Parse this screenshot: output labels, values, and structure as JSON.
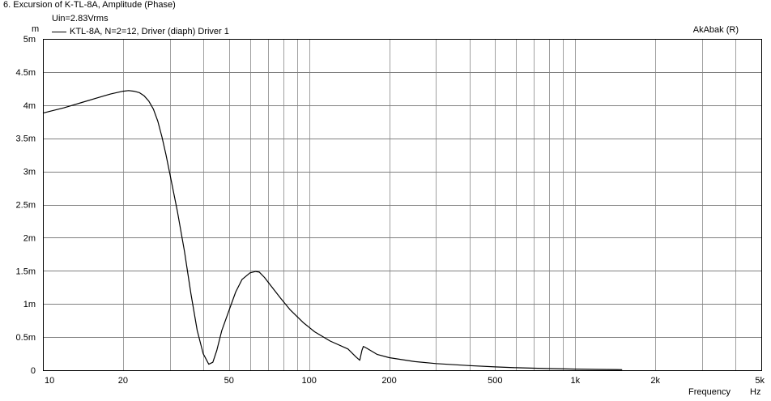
{
  "window_title": "6. Excursion of K-TL-8A, Amplitude (Phase)",
  "subtitle": "Uin=2.83Vrms",
  "watermark": "AkAbak (R)",
  "chart_data": {
    "type": "line",
    "title": "Excursion of K-TL-8A, Amplitude (Phase)",
    "subtitle": "Uin=2.83Vrms",
    "xlabel": "Frequency",
    "xunit": "Hz",
    "yunit": "m",
    "xscale": "log",
    "xlim": [
      10,
      5000
    ],
    "ylim": [
      0,
      0.005
    ],
    "grid": true,
    "legend_position": "top-left",
    "x_ticks": [
      {
        "value": 10,
        "label": "10"
      },
      {
        "value": 20,
        "label": "20"
      },
      {
        "value": 50,
        "label": "50"
      },
      {
        "value": 100,
        "label": "100"
      },
      {
        "value": 200,
        "label": "200"
      },
      {
        "value": 500,
        "label": "500"
      },
      {
        "value": 1000,
        "label": "1k"
      },
      {
        "value": 2000,
        "label": "2k"
      },
      {
        "value": 5000,
        "label": "5k"
      }
    ],
    "y_ticks": [
      {
        "value": 0,
        "label": "0"
      },
      {
        "value": 0.0005,
        "label": "0.5m"
      },
      {
        "value": 0.001,
        "label": "1m"
      },
      {
        "value": 0.0015,
        "label": "1.5m"
      },
      {
        "value": 0.002,
        "label": "2m"
      },
      {
        "value": 0.0025,
        "label": "2.5m"
      },
      {
        "value": 0.003,
        "label": "3m"
      },
      {
        "value": 0.0035,
        "label": "3.5m"
      },
      {
        "value": 0.004,
        "label": "4m"
      },
      {
        "value": 0.0045,
        "label": "4.5m"
      },
      {
        "value": 0.005,
        "label": "5m"
      }
    ],
    "series": [
      {
        "name": "KTL-8A, N=2=12, Driver (diaph) Driver 1",
        "color": "#000000",
        "x": [
          10,
          12,
          14,
          16,
          18,
          20,
          21,
          22,
          23,
          24,
          25,
          26,
          27,
          28,
          29,
          30,
          32,
          34,
          36,
          38,
          40,
          42,
          43.5,
          45,
          47,
          50,
          53,
          56,
          60,
          63,
          65,
          68,
          72,
          78,
          85,
          95,
          105,
          120,
          140,
          150,
          155,
          158,
          160,
          165,
          180,
          200,
          250,
          300,
          400,
          500,
          600,
          700,
          800,
          1000,
          1200,
          1500
        ],
        "y": [
          0.00388,
          0.00396,
          0.00404,
          0.00411,
          0.00417,
          0.00421,
          0.00422,
          0.00421,
          0.00419,
          0.00414,
          0.00406,
          0.00394,
          0.00376,
          0.00352,
          0.00325,
          0.00296,
          0.0024,
          0.0018,
          0.00115,
          0.0006,
          0.00025,
          9e-05,
          0.00012,
          0.0003,
          0.0006,
          0.0009,
          0.00118,
          0.00137,
          0.00147,
          0.00149,
          0.00148,
          0.0014,
          0.00127,
          0.00109,
          0.00091,
          0.00072,
          0.00058,
          0.00044,
          0.00032,
          0.0002,
          0.00015,
          0.0003,
          0.00036,
          0.00033,
          0.00024,
          0.00019,
          0.00013,
          0.0001,
          7e-05,
          5e-05,
          3.8e-05,
          3e-05,
          2.4e-05,
          1.7e-05,
          1.2e-05,
          8e-06
        ]
      }
    ]
  }
}
